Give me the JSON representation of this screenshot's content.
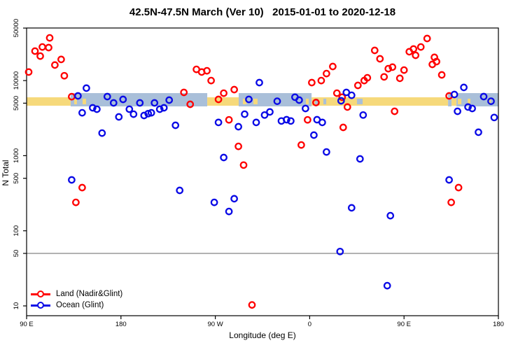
{
  "title": "42.5N-47.5N March (Ver 10)   2015-01-01 to 2020-12-18",
  "x_axis": {
    "label": "Longitude (deg E)",
    "ticks": [
      {
        "lon": 90,
        "label": "90 E"
      },
      {
        "lon": 180,
        "label": "180"
      },
      {
        "lon": 270,
        "label": "90 W"
      },
      {
        "lon": 360,
        "label": "0"
      },
      {
        "lon": 450,
        "label": "90 E"
      },
      {
        "lon": 540,
        "label": "180"
      }
    ]
  },
  "y_axis": {
    "label": "N Total",
    "scale": "log",
    "ticks": [
      {
        "value": 50000,
        "label": "50000"
      },
      {
        "value": 10000,
        "label": "10000"
      },
      {
        "value": 5000,
        "label": "5000"
      },
      {
        "value": 1000,
        "label": "1000"
      },
      {
        "value": 500,
        "label": "500"
      },
      {
        "value": 100,
        "label": "100"
      },
      {
        "value": 50,
        "label": "50"
      },
      {
        "value": 10,
        "label": "10"
      }
    ]
  },
  "reference_line": {
    "value": 50,
    "color": "#999999"
  },
  "colors": {
    "land_points": "#FF0000",
    "ocean_points": "#0A0AE6",
    "band_land": "#F6D97B",
    "band_ocean": "#A9BFD9",
    "frame": "#000000"
  },
  "legend": {
    "items": [
      {
        "series": "land",
        "label": "Land (Nadir&Glint)",
        "color": "#FF0000"
      },
      {
        "series": "ocean",
        "label": "Ocean (Glint)",
        "color": "#0A0AE6"
      }
    ]
  },
  "surface_band": {
    "note": "map strip of surface type along longitude, drawn near N=5000",
    "segments": [
      {
        "from": 90,
        "to": 132,
        "surface": "land"
      },
      {
        "from": 132,
        "to": 262.3,
        "surface": "ocean"
      },
      {
        "from": 262.3,
        "to": 292.3,
        "surface": "land"
      },
      {
        "from": 292.3,
        "to": 361.8,
        "surface": "ocean"
      },
      {
        "from": 361.8,
        "to": 492,
        "surface": "land"
      },
      {
        "from": 492,
        "to": 495.3,
        "surface": "ocean"
      },
      {
        "from": 495.3,
        "to": 500,
        "surface": "land"
      },
      {
        "from": 500,
        "to": 540,
        "surface": "ocean"
      }
    ],
    "land_specks": [
      [
        135.4,
        138
      ],
      [
        143.4,
        146.7
      ],
      [
        296.3,
        299.7
      ],
      [
        306.3,
        310.3
      ],
      [
        356.4,
        359.1
      ],
      [
        501.3,
        504.7
      ],
      [
        510.7,
        513.3
      ],
      [
        530,
        532.7
      ]
    ],
    "ocean_specks": [
      [
        365.1,
        368.4
      ],
      [
        373.1,
        375.8
      ],
      [
        405.1,
        410.5
      ]
    ]
  },
  "chart_data": {
    "type": "scatter",
    "xlabel": "Longitude (deg E)",
    "ylabel": "N Total",
    "x_unit": "longitude in deg E, plotted eastward from 90E (90..540)",
    "x_range": [
      90,
      540
    ],
    "y_range_log": [
      10,
      50000
    ],
    "legend_position": "bottom-left",
    "series": [
      {
        "name": "Land (Nadir&Glint)",
        "color": "#FF0000",
        "points": [
          [
            112,
            37000
          ],
          [
            105,
            28000
          ],
          [
            111,
            27500
          ],
          [
            98,
            24700
          ],
          [
            103,
            21200
          ],
          [
            123,
            19100
          ],
          [
            117,
            16100
          ],
          [
            92,
            13000
          ],
          [
            126,
            11600
          ],
          [
            133,
            6100
          ],
          [
            240,
            6960
          ],
          [
            246,
            4830
          ],
          [
            252,
            14100
          ],
          [
            257,
            13000
          ],
          [
            262,
            13500
          ],
          [
            266,
            10000
          ],
          [
            278,
            6800
          ],
          [
            273,
            5620
          ],
          [
            288,
            7580
          ],
          [
            283,
            3000
          ],
          [
            292,
            1330
          ],
          [
            297,
            750
          ],
          [
            305,
            10.3
          ],
          [
            352,
            1390
          ],
          [
            358,
            3000
          ],
          [
            362,
            9400
          ],
          [
            366,
            5100
          ],
          [
            371,
            10000
          ],
          [
            376,
            12400
          ],
          [
            382,
            15400
          ],
          [
            386,
            6800
          ],
          [
            391,
            6000
          ],
          [
            392,
            2380
          ],
          [
            396,
            4440
          ],
          [
            406,
            8630
          ],
          [
            412,
            10000
          ],
          [
            415,
            10900
          ],
          [
            422,
            25200
          ],
          [
            427,
            19500
          ],
          [
            431,
            11200
          ],
          [
            435,
            14400
          ],
          [
            439,
            15100
          ],
          [
            441,
            3900
          ],
          [
            446,
            10700
          ],
          [
            450,
            13800
          ],
          [
            455,
            24200
          ],
          [
            459,
            26300
          ],
          [
            461,
            21700
          ],
          [
            466,
            28000
          ],
          [
            472,
            36300
          ],
          [
            477,
            16400
          ],
          [
            479,
            20400
          ],
          [
            481,
            17900
          ],
          [
            486,
            11900
          ],
          [
            493,
            6250
          ],
          [
            495,
            239
          ],
          [
            502,
            376
          ],
          [
            137,
            239
          ],
          [
            143,
            376
          ]
        ]
      },
      {
        "name": "Ocean (Glint)",
        "color": "#0A0AE6",
        "points": [
          [
            147,
            7930
          ],
          [
            139,
            6250
          ],
          [
            167,
            6120
          ],
          [
            173,
            5040
          ],
          [
            182,
            5620
          ],
          [
            198,
            5040
          ],
          [
            212,
            5040
          ],
          [
            226,
            5500
          ],
          [
            143,
            3730
          ],
          [
            153,
            4340
          ],
          [
            157,
            4160
          ],
          [
            162,
            2000
          ],
          [
            178,
            3280
          ],
          [
            188,
            4160
          ],
          [
            192,
            3570
          ],
          [
            202,
            3430
          ],
          [
            206,
            3630
          ],
          [
            209,
            3730
          ],
          [
            217,
            4160
          ],
          [
            221,
            4340
          ],
          [
            232,
            2540
          ],
          [
            133,
            476
          ],
          [
            236,
            345
          ],
          [
            269,
            239
          ],
          [
            273,
            2770
          ],
          [
            278,
            946
          ],
          [
            283,
            181
          ],
          [
            288,
            267
          ],
          [
            292,
            2430
          ],
          [
            298,
            3570
          ],
          [
            302,
            5620
          ],
          [
            309,
            2770
          ],
          [
            312,
            9400
          ],
          [
            317,
            3480
          ],
          [
            322,
            3820
          ],
          [
            329,
            5310
          ],
          [
            333,
            2900
          ],
          [
            338,
            3010
          ],
          [
            342,
            2900
          ],
          [
            346,
            6010
          ],
          [
            350,
            5500
          ],
          [
            356,
            4250
          ],
          [
            364,
            1880
          ],
          [
            367,
            3010
          ],
          [
            372,
            2770
          ],
          [
            376,
            1120
          ],
          [
            389,
            53
          ],
          [
            390,
            5380
          ],
          [
            395,
            6960
          ],
          [
            400,
            6370
          ],
          [
            400,
            202
          ],
          [
            408,
            906
          ],
          [
            411,
            3480
          ],
          [
            434,
            18.6
          ],
          [
            437,
            159
          ],
          [
            493,
            476
          ],
          [
            498,
            6530
          ],
          [
            501,
            3900
          ],
          [
            507,
            8100
          ],
          [
            511,
            4440
          ],
          [
            515,
            4250
          ],
          [
            521,
            2050
          ],
          [
            526,
            6120
          ],
          [
            533,
            5310
          ],
          [
            536,
            3230
          ]
        ]
      }
    ]
  }
}
